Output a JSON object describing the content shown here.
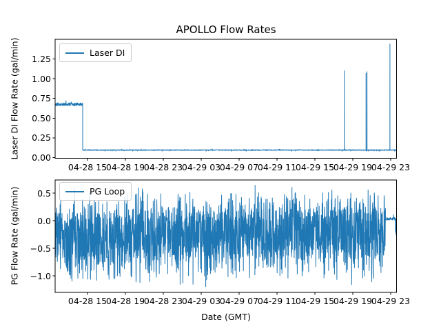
{
  "figure": {
    "title": "APOLLO Flow Rates",
    "background": "#ffffff",
    "text_color": "#000000",
    "accent_line_color": "#1f77b4"
  },
  "chart_data": [
    {
      "type": "line",
      "title": "APOLLO Flow Rates",
      "ylabel": "Laser DI Flow Rate (gal/min)",
      "xlabel": "",
      "legend": [
        "Laser DI"
      ],
      "legend_position": "upper left",
      "line_color": "#1f77b4",
      "grid": false,
      "ylim": [
        -0.009,
        1.5
      ],
      "yticks": [
        0,
        0.25,
        0.5,
        0.75,
        1.0,
        1.25
      ],
      "ytick_labels": [
        "0.00",
        "0.25",
        "0.50",
        "0.75",
        "1.00",
        "1.25"
      ],
      "xlim_hours": [
        11.58,
        47.62
      ],
      "xtick_hours": [
        15,
        19,
        23,
        27,
        31,
        35,
        39,
        43,
        47
      ],
      "xtick_labels": [
        "04-28 15",
        "04-28 19",
        "04-28 23",
        "04-29 03",
        "04-29 07",
        "04-29 11",
        "04-29 15",
        "04-29 19",
        "04-29 23"
      ],
      "series": [
        {
          "name": "Laser DI",
          "segments": [
            {
              "from_hour": 11.58,
              "to_hour": 14.49,
              "base": 0.675,
              "noise": 0.02
            },
            {
              "from_hour": 14.49,
              "to_hour": 47.62,
              "base": 0.095,
              "noise": 0.005
            }
          ],
          "spikes": [
            {
              "hour": 42.11,
              "value": 1.1
            },
            {
              "hour": 44.4,
              "value": 1.07
            },
            {
              "hour": 44.5,
              "value": 1.09
            },
            {
              "hour": 46.92,
              "value": 1.44
            }
          ]
        }
      ]
    },
    {
      "type": "line",
      "title": "",
      "ylabel": "PG Flow Rate (gal/min)",
      "xlabel": "Date (GMT)",
      "legend": [
        "PG Loop"
      ],
      "legend_position": "upper left",
      "line_color": "#1f77b4",
      "grid": false,
      "ylim": [
        -1.3,
        0.7375
      ],
      "yticks": [
        0.5,
        0.0,
        -0.5,
        -1.0
      ],
      "ytick_labels": [
        "0.5",
        "0.0",
        "−0.5",
        "−1.0"
      ],
      "xlim_hours": [
        11.58,
        47.62
      ],
      "xtick_hours": [
        15,
        19,
        23,
        27,
        31,
        35,
        39,
        43,
        47
      ],
      "xtick_labels": [
        "04-28 15",
        "04-28 19",
        "04-28 23",
        "04-29 03",
        "04-29 07",
        "04-29 11",
        "04-29 15",
        "04-29 19",
        "04-29 23"
      ],
      "series": [
        {
          "name": "PG Loop",
          "segments": [
            {
              "from_hour": 11.58,
              "to_hour": 19.5,
              "noise_dist": {
                "core": [
                  -0.8,
                  0.15
                ],
                "mid": [
                  -1.1,
                  0.4
                ],
                "ext": [
                  -1.22,
                  0.58
                ],
                "p_mid": 0.3,
                "p_ext": 0.06
              }
            },
            {
              "from_hour": 19.5,
              "to_hour": 46.45,
              "noise_dist": {
                "core": [
                  -0.68,
                  0.25
                ],
                "mid": [
                  -1.05,
                  0.52
                ],
                "ext": [
                  -1.22,
                  0.64
                ],
                "p_mid": 0.32,
                "p_ext": 0.09
              }
            },
            {
              "from_hour": 46.45,
              "to_hour": 47.5,
              "base": 0.035,
              "noise": 0.025
            },
            {
              "from_hour": 47.5,
              "to_hour": 47.62,
              "base": -0.12,
              "noise": 0.18
            }
          ],
          "spikes": []
        }
      ]
    }
  ]
}
